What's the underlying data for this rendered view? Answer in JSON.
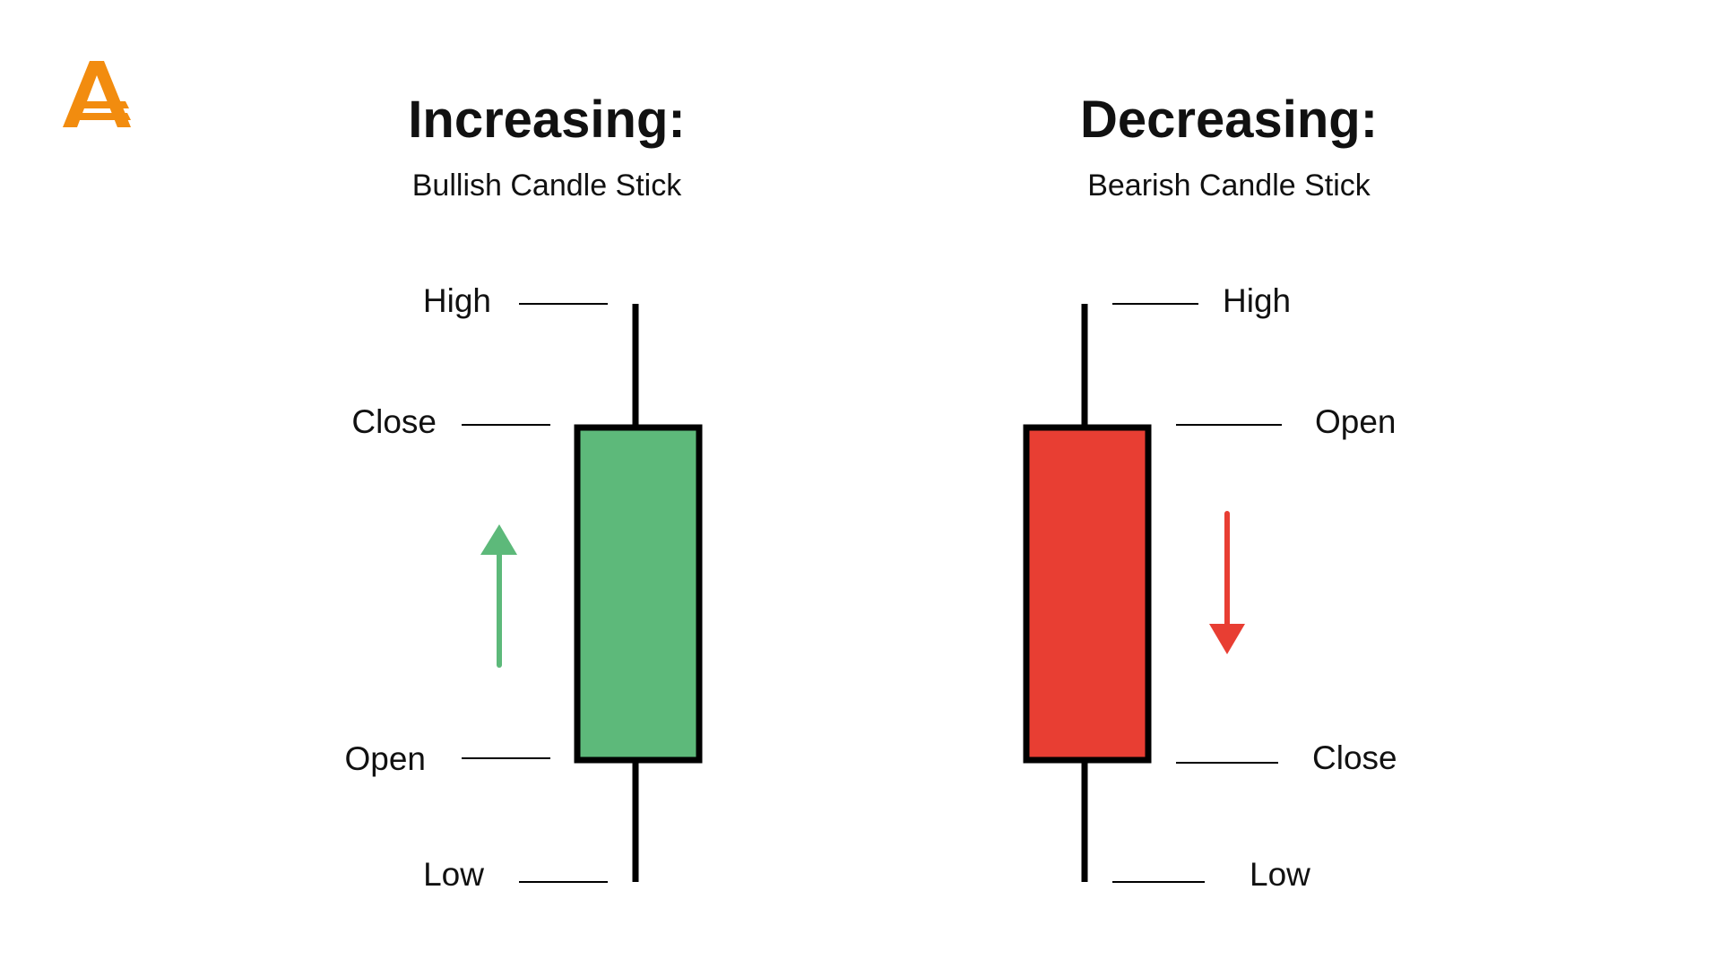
{
  "logo": {
    "text": "A",
    "color": "#F28C0F"
  },
  "left": {
    "title": "Increasing:",
    "subtitle": "Bullish Candle Stick",
    "labels": {
      "high": "High",
      "close": "Close",
      "open": "Open",
      "low": "Low"
    },
    "body_color": "#5DB97A",
    "arrow": "up-arrow"
  },
  "right": {
    "title": "Decreasing:",
    "subtitle": "Bearish Candle Stick",
    "labels": {
      "high": "High",
      "open": "Open",
      "close": "Close",
      "low": "Low"
    },
    "body_color": "#E83E33",
    "arrow": "down-arrow"
  }
}
